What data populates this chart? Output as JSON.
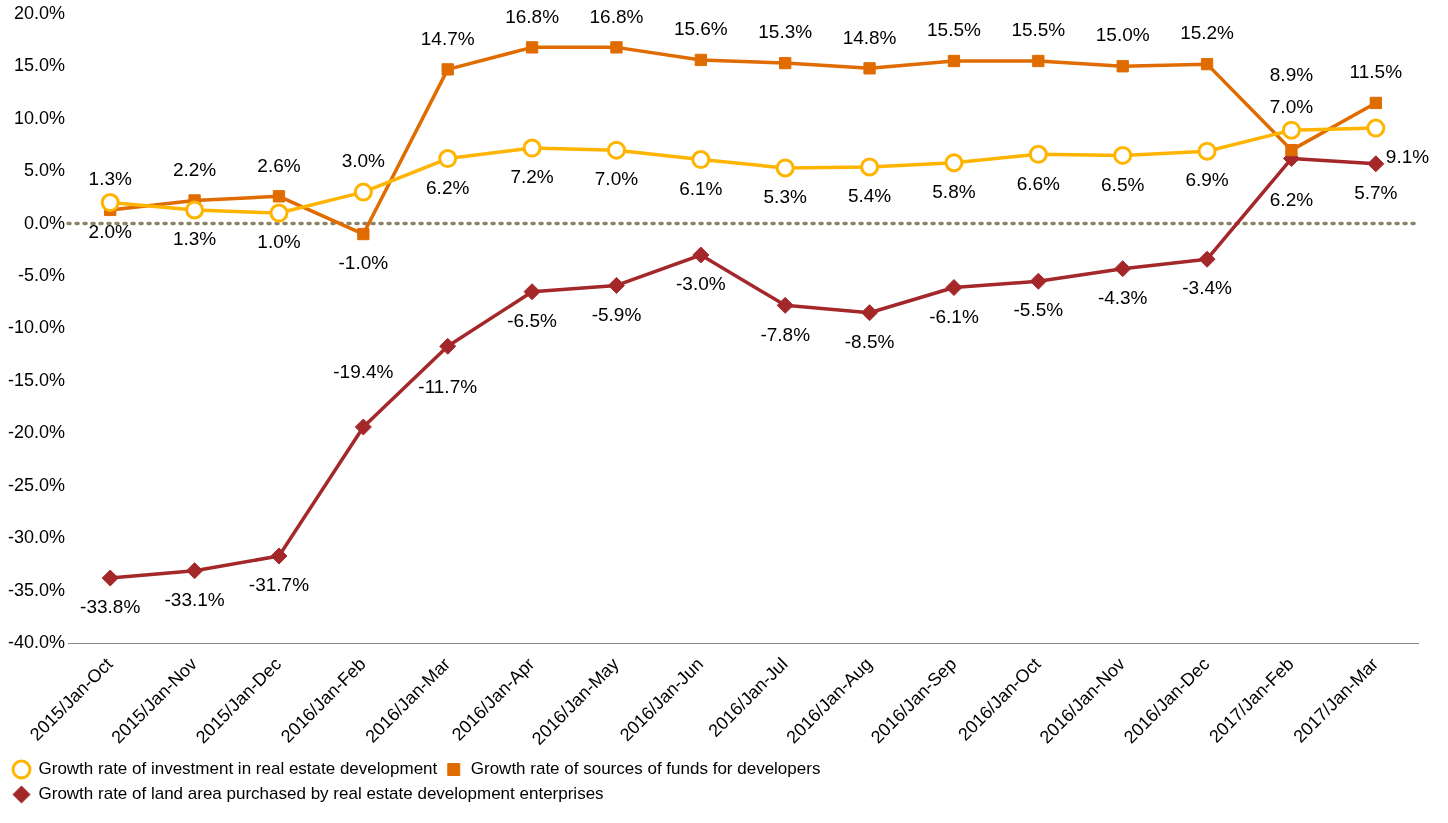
{
  "chart_data": {
    "type": "line",
    "categories": [
      "2015/Jan-Oct",
      "2015/Jan-Nov",
      "2015/Jan-Dec",
      "2016/Jan-Feb",
      "2016/Jan-Mar",
      "2016/Jan-Apr",
      "2016/Jan-May",
      "2016/Jan-Jun",
      "2016/Jan-Jul",
      "2016/Jan-Aug",
      "2016/Jan-Sep",
      "2016/Jan-Oct",
      "2016/Jan-Nov",
      "2016/Jan-Dec",
      "2017/Jan-Feb",
      "2017/Jan-Mar"
    ],
    "series": [
      {
        "name": "Growth rate of land area purchased by real estate development enterprises",
        "color": "#a4282a",
        "marker": "diamond",
        "values": [
          -33.8,
          -33.1,
          -31.7,
          -19.4,
          -11.7,
          -6.5,
          -5.9,
          -3.0,
          -7.8,
          -8.5,
          -6.1,
          -5.5,
          -4.3,
          -3.4,
          6.2,
          5.7
        ],
        "value_labels": [
          "-33.8%",
          "-33.1%",
          "-31.7%",
          "-19.4%",
          "-11.7%",
          "-6.5%",
          "-5.9%",
          "-3.0%",
          "-7.8%",
          "-8.5%",
          "-6.1%",
          "-5.5%",
          "-4.3%",
          "-3.4%",
          "6.2%",
          "5.7%"
        ]
      },
      {
        "name": "Growth rate of sources of funds for developers",
        "color": "#e06c00",
        "marker": "square",
        "values": [
          1.3,
          2.2,
          2.6,
          -1.0,
          14.7,
          16.8,
          16.8,
          15.6,
          15.3,
          14.8,
          15.5,
          15.5,
          15.0,
          15.2,
          7.0,
          11.5
        ],
        "value_labels": [
          "1.3%",
          "2.2%",
          "2.6%",
          "-1.0%",
          "14.7%",
          "16.8%",
          "16.8%",
          "15.6%",
          "15.3%",
          "14.8%",
          "15.5%",
          "15.5%",
          "15.0%",
          "15.2%",
          "7.0%",
          "11.5%"
        ]
      },
      {
        "name": "Growth rate of investment in real estate development",
        "color": "#ffb400",
        "marker": "circle",
        "values": [
          2.0,
          1.3,
          1.0,
          3.0,
          6.2,
          7.2,
          7.0,
          6.1,
          5.3,
          5.4,
          5.8,
          6.6,
          6.5,
          6.9,
          8.9,
          9.1
        ],
        "value_labels": [
          "2.0%",
          "1.3%",
          "1.0%",
          "3.0%",
          "6.2%",
          "7.2%",
          "7.0%",
          "6.1%",
          "5.3%",
          "5.4%",
          "5.8%",
          "6.6%",
          "6.5%",
          "6.9%",
          "8.9%",
          "9.1%"
        ]
      }
    ],
    "ylim": [
      -40,
      20
    ],
    "yticks": [
      {
        "value": -40,
        "label": "-40.0%"
      },
      {
        "value": -35,
        "label": "-35.0%"
      },
      {
        "value": -30,
        "label": "-30.0%"
      },
      {
        "value": -25,
        "label": "-25.0%"
      },
      {
        "value": -20,
        "label": "-20.0%"
      },
      {
        "value": -15,
        "label": "-15.0%"
      },
      {
        "value": -10,
        "label": "-10.0%"
      },
      {
        "value": -5,
        "label": "-5.0%"
      },
      {
        "value": 0,
        "label": "0.0%"
      },
      {
        "value": 5,
        "label": "5.0%"
      },
      {
        "value": 10,
        "label": "10.0%"
      },
      {
        "value": 15,
        "label": "15.0%"
      },
      {
        "value": 20,
        "label": "20.0%"
      }
    ],
    "ref_lines": [
      {
        "axis": "y",
        "value": 0,
        "color": "#8c8468",
        "line_style": "dotted"
      }
    ],
    "grid": false,
    "legend": "bottom left",
    "line_style": "solid"
  }
}
